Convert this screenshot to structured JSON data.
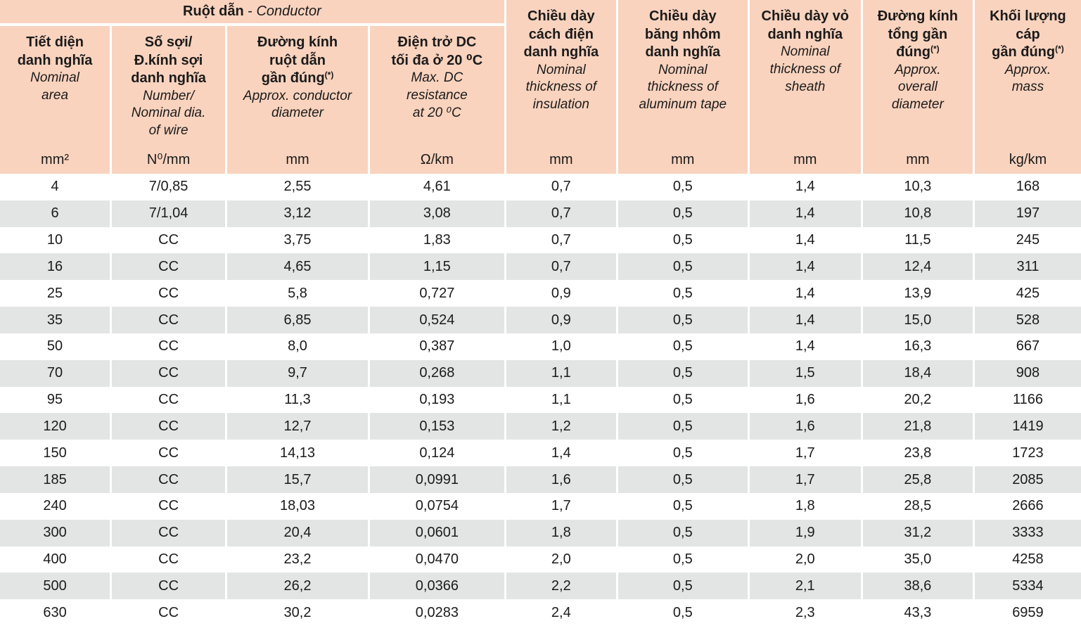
{
  "colors": {
    "header_bg": "#f9d3be",
    "row_alt_bg": "#e3e4e4",
    "row_bg": "#ffffff",
    "text": "#1b1b1b"
  },
  "table": {
    "group": {
      "vi": "Ruột dẫn",
      "sep": " - ",
      "en": "Conductor"
    },
    "columns": [
      {
        "vi": "Tiết diện\ndanh nghĩa",
        "sup": "",
        "en": "Nominal\narea",
        "unit": "mm²"
      },
      {
        "vi": "Số sợi/\nĐ.kính sợi\ndanh nghĩa",
        "sup": "",
        "en": "Number/\nNominal dia.\nof wire",
        "unit": "N⁰/mm"
      },
      {
        "vi": "Đường kính\nruột dẫn\ngần đúng",
        "sup": "(*)",
        "en": "Approx. conductor\ndiameter",
        "unit": "mm"
      },
      {
        "vi": "Điện trở DC\ntối đa ở 20 ⁰C",
        "sup": "",
        "en": "Max. DC\nresistance\nat 20 ⁰C",
        "unit": "Ω/km"
      },
      {
        "vi": "Chiều dày\ncách điện\ndanh nghĩa",
        "sup": "",
        "en": "Nominal\nthickness of\ninsulation",
        "unit": "mm"
      },
      {
        "vi": "Chiều dày\nbăng nhôm\ndanh nghĩa",
        "sup": "",
        "en": "Nominal\nthickness of\naluminum tape",
        "unit": "mm"
      },
      {
        "vi": "Chiều dày vỏ\ndanh nghĩa",
        "sup": "",
        "en": "Nominal\nthickness of\nsheath",
        "unit": "mm"
      },
      {
        "vi": "Đường kính\ntổng gần\nđúng",
        "sup": "(*)",
        "en": "Approx.\noverall\ndiameter",
        "unit": "mm"
      },
      {
        "vi": "Khối lượng cáp\ngần đúng",
        "sup": "(*)",
        "en": "Approx.\nmass",
        "unit": "kg/km"
      }
    ],
    "rows": [
      [
        "4",
        "7/0,85",
        "2,55",
        "4,61",
        "0,7",
        "0,5",
        "1,4",
        "10,3",
        "168"
      ],
      [
        "6",
        "7/1,04",
        "3,12",
        "3,08",
        "0,7",
        "0,5",
        "1,4",
        "10,8",
        "197"
      ],
      [
        "10",
        "CC",
        "3,75",
        "1,83",
        "0,7",
        "0,5",
        "1,4",
        "11,5",
        "245"
      ],
      [
        "16",
        "CC",
        "4,65",
        "1,15",
        "0,7",
        "0,5",
        "1,4",
        "12,4",
        "311"
      ],
      [
        "25",
        "CC",
        "5,8",
        "0,727",
        "0,9",
        "0,5",
        "1,4",
        "13,9",
        "425"
      ],
      [
        "35",
        "CC",
        "6,85",
        "0,524",
        "0,9",
        "0,5",
        "1,4",
        "15,0",
        "528"
      ],
      [
        "50",
        "CC",
        "8,0",
        "0,387",
        "1,0",
        "0,5",
        "1,4",
        "16,3",
        "667"
      ],
      [
        "70",
        "CC",
        "9,7",
        "0,268",
        "1,1",
        "0,5",
        "1,5",
        "18,4",
        "908"
      ],
      [
        "95",
        "CC",
        "11,3",
        "0,193",
        "1,1",
        "0,5",
        "1,6",
        "20,2",
        "1166"
      ],
      [
        "120",
        "CC",
        "12,7",
        "0,153",
        "1,2",
        "0,5",
        "1,6",
        "21,8",
        "1419"
      ],
      [
        "150",
        "CC",
        "14,13",
        "0,124",
        "1,4",
        "0,5",
        "1,7",
        "23,8",
        "1723"
      ],
      [
        "185",
        "CC",
        "15,7",
        "0,0991",
        "1,6",
        "0,5",
        "1,7",
        "25,8",
        "2085"
      ],
      [
        "240",
        "CC",
        "18,03",
        "0,0754",
        "1,7",
        "0,5",
        "1,8",
        "28,5",
        "2666"
      ],
      [
        "300",
        "CC",
        "20,4",
        "0,0601",
        "1,8",
        "0,5",
        "1,9",
        "31,2",
        "3333"
      ],
      [
        "400",
        "CC",
        "23,2",
        "0,0470",
        "2,0",
        "0,5",
        "2,0",
        "35,0",
        "4258"
      ],
      [
        "500",
        "CC",
        "26,2",
        "0,0366",
        "2,2",
        "0,5",
        "2,1",
        "38,6",
        "5334"
      ],
      [
        "630",
        "CC",
        "30,2",
        "0,0283",
        "2,4",
        "0,5",
        "2,3",
        "43,3",
        "6959"
      ]
    ]
  }
}
